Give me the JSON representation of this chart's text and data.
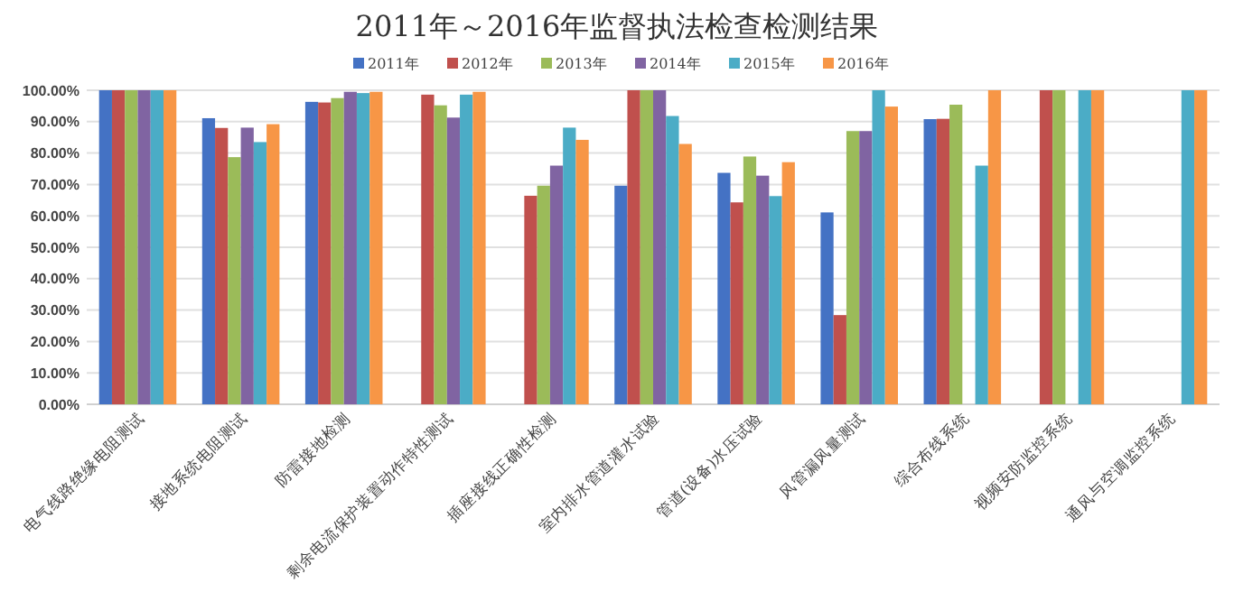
{
  "chart_data": {
    "type": "bar",
    "title": "2011年～2016年监督执法检查检测结果",
    "categories": [
      "电气线路绝缘电阻测试",
      "接地系统电阻测试",
      "防雷接地检测",
      "剩余电流保护装置动作特性测试",
      "插座接线正确性检测",
      "室内排水管道灌水试验",
      "管道(设备)水压试验",
      "风管漏风量测试",
      "综合布线系统",
      "视频安防监控系统",
      "通风与空调监控系统"
    ],
    "series": [
      {
        "name": "2011年",
        "color": "#4472c4",
        "values": [
          100,
          91.1,
          96.3,
          null,
          null,
          69.6,
          73.7,
          61.1,
          90.8,
          null,
          null
        ]
      },
      {
        "name": "2012年",
        "color": "#c0504d",
        "values": [
          100,
          88,
          96.1,
          98.6,
          66.4,
          100,
          64.3,
          28.4,
          90.9,
          100,
          null
        ]
      },
      {
        "name": "2013年",
        "color": "#9bbb59",
        "values": [
          100,
          78.7,
          97.5,
          95.2,
          69.6,
          100,
          78.9,
          87,
          95.4,
          100,
          null
        ]
      },
      {
        "name": "2014年",
        "color": "#8064a2",
        "values": [
          100,
          88.1,
          99.5,
          91.3,
          76,
          100,
          72.8,
          87,
          null,
          null,
          null
        ]
      },
      {
        "name": "2015年",
        "color": "#4bacc6",
        "values": [
          100,
          83.5,
          99.1,
          98.6,
          88.1,
          91.8,
          66.3,
          100,
          76,
          100,
          100
        ]
      },
      {
        "name": "2016年",
        "color": "#f79646",
        "values": [
          100,
          89.2,
          99.5,
          99.5,
          84.2,
          82.9,
          77.1,
          94.8,
          100,
          100,
          100
        ]
      }
    ],
    "ylim": [
      0,
      100
    ],
    "yticks": [
      {
        "value": 0,
        "label": "0.00%"
      },
      {
        "value": 10,
        "label": "10.00%"
      },
      {
        "value": 20,
        "label": "20.00%"
      },
      {
        "value": 30,
        "label": "30.00%"
      },
      {
        "value": 40,
        "label": "40.00%"
      },
      {
        "value": 50,
        "label": "50.00%"
      },
      {
        "value": 60,
        "label": "60.00%"
      },
      {
        "value": 70,
        "label": "70.00%"
      },
      {
        "value": 80,
        "label": "80.00%"
      },
      {
        "value": 90,
        "label": "90.00%"
      },
      {
        "value": 100,
        "label": "100.00%"
      }
    ],
    "grid": "y",
    "legend": "top"
  }
}
